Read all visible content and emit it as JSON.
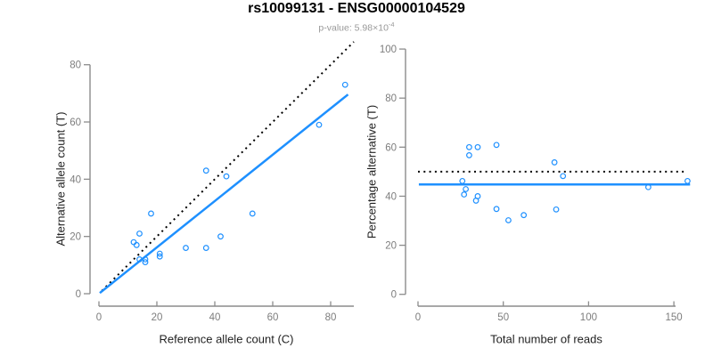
{
  "header": {
    "title": "rs10099131 - ENSG00000104529",
    "subtitle_base": "p-value: 5.98×10",
    "subtitle_exp": "-4"
  },
  "colors": {
    "accent_blue": "#1E90FF",
    "reference_line_black": "#000000",
    "axis_gray": "#8c8c8c",
    "tick_label_gray": "#7d7d7d",
    "axis_title_dark": "#1f1f1f",
    "subtitle_gray": "#999999",
    "background": "#ffffff"
  },
  "chart_data": [
    {
      "type": "scatter",
      "title": "",
      "xlabel": "Reference allele count (C)",
      "ylabel": "Alternative allele count (T)",
      "xlim": [
        0,
        88
      ],
      "ylim": [
        0,
        88
      ],
      "xticks": [
        0,
        20,
        40,
        60,
        80
      ],
      "yticks": [
        0,
        20,
        40,
        60,
        80
      ],
      "grid": false,
      "legend": "none",
      "marker": "open-circle",
      "points": [
        [
          12,
          18
        ],
        [
          13,
          17
        ],
        [
          14,
          21
        ],
        [
          14,
          12
        ],
        [
          16,
          12
        ],
        [
          16,
          11
        ],
        [
          18,
          28
        ],
        [
          21,
          14
        ],
        [
          21,
          13
        ],
        [
          30,
          16
        ],
        [
          37,
          43
        ],
        [
          37,
          16
        ],
        [
          42,
          20
        ],
        [
          44,
          41
        ],
        [
          53,
          28
        ],
        [
          76,
          59
        ],
        [
          85,
          73
        ]
      ],
      "lines": [
        {
          "name": "identity-line",
          "style": "dotted",
          "color": "#000000",
          "x1": 1,
          "y1": 1,
          "x2": 88,
          "y2": 88
        },
        {
          "name": "regression-line",
          "style": "solid",
          "color": "#1E90FF",
          "x1": 0.3,
          "y1": 0.25,
          "x2": 86,
          "y2": 69.6
        }
      ]
    },
    {
      "type": "scatter",
      "title": "",
      "xlabel": "Total number of reads",
      "ylabel": "Percentage alternative (T)",
      "xlim": [
        0,
        160
      ],
      "ylim": [
        0,
        100
      ],
      "xticks": [
        0,
        50,
        100,
        150
      ],
      "yticks": [
        0,
        20,
        40,
        60,
        80,
        100
      ],
      "grid": false,
      "legend": "none",
      "marker": "open-circle",
      "points": [
        [
          30,
          60.0
        ],
        [
          30,
          56.7
        ],
        [
          35,
          60.0
        ],
        [
          26,
          46.2
        ],
        [
          28,
          42.9
        ],
        [
          27,
          40.7
        ],
        [
          46,
          60.9
        ],
        [
          35,
          40.0
        ],
        [
          34,
          38.2
        ],
        [
          46,
          34.8
        ],
        [
          80,
          53.8
        ],
        [
          53,
          30.2
        ],
        [
          62,
          32.3
        ],
        [
          85,
          48.2
        ],
        [
          81,
          34.6
        ],
        [
          135,
          43.7
        ],
        [
          158,
          46.2
        ]
      ],
      "lines": [
        {
          "name": "expected-50pct-line",
          "style": "dotted",
          "color": "#000000",
          "x1": 0,
          "y1": 50,
          "x2": 157,
          "y2": 50
        },
        {
          "name": "mean-percentage-line",
          "style": "solid",
          "color": "#1E90FF",
          "x1": 0.5,
          "y1": 44.8,
          "x2": 159.5,
          "y2": 44.8
        }
      ]
    }
  ]
}
